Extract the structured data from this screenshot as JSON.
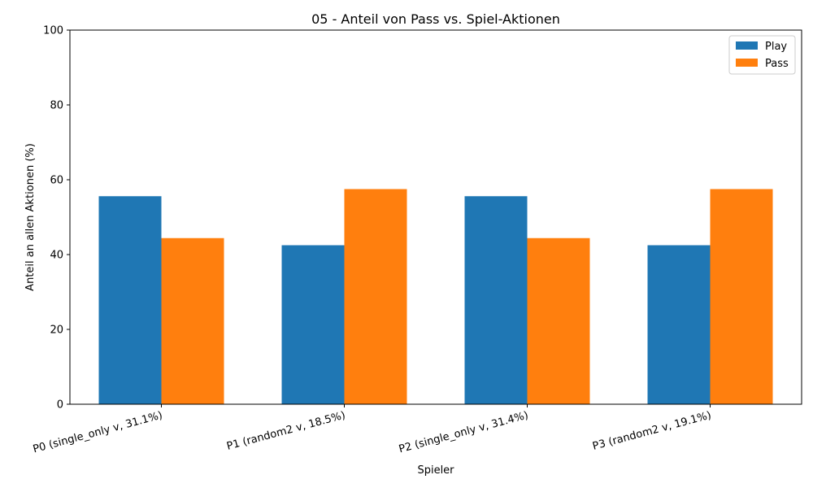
{
  "chart_data": {
    "type": "bar",
    "title": "05 - Anteil von Pass vs. Spiel-Aktionen",
    "xlabel": "Spieler",
    "ylabel": "Anteil an allen Aktionen (%)",
    "ylim": [
      0,
      100
    ],
    "yticks": [
      "0",
      "20",
      "40",
      "60",
      "80",
      "100"
    ],
    "categories": [
      "P0 (single_only v, 31.1%)",
      "P1 (random2 v, 18.5%)",
      "P2 (single_only v, 31.4%)",
      "P3 (random2 v, 19.1%)"
    ],
    "series": [
      {
        "name": "Play",
        "color": "#1f77b4",
        "values": [
          55.6,
          42.5,
          55.6,
          42.5
        ]
      },
      {
        "name": "Pass",
        "color": "#ff7f0e",
        "values": [
          44.4,
          57.5,
          44.4,
          57.5
        ]
      }
    ],
    "legend": "top-right",
    "grid": false
  }
}
